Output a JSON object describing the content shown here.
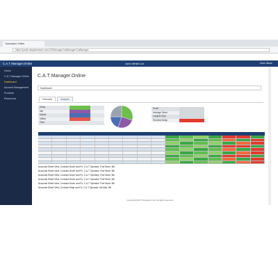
{
  "browser": {
    "tab": "Transaxion Online",
    "url": "https://portal.catsystemtech.com/CATManager/CatManager/CatManager"
  },
  "header": {
    "app": "C.A.T Manager.Online",
    "company": "John White Ltd",
    "user": "Chris Stone"
  },
  "sidebar": [
    "Home",
    "C.A.T Manager Online",
    "Dashboard",
    "Account Management",
    "Products",
    "Resources"
  ],
  "page": {
    "title": "C.A.T Manager.Online",
    "filter_label": "Dashboard",
    "tabs": [
      "Overview",
      "Analysis"
    ]
  },
  "summary": [
    "Delay",
    "Idle",
    "Mobile",
    "Offline",
    "Total"
  ],
  "stats": [
    "Score",
    "Average Score",
    "Longest Stop",
    "Shortest Delay"
  ],
  "pie": {
    "values": [
      30,
      25,
      20,
      25
    ],
    "colors": [
      "#6cbf4a",
      "#8e5aa8",
      "#4a6fb5",
      "#9aa3b0"
    ]
  },
  "list": [
    "Accounts Sheet View: Contract Driver and Fu: C.A.T Operator: Fuel Store: 5th",
    "Accounts Sheet View: Contract Driver and Fu: C.A.T Operator: Fuel Store: 5th",
    "Accounts Sheet View: Contract Driver and Fu: C.A.T Operator: Fuel Store: 5th",
    "Accounts Sheet View: Contract Driver and Fu: C.A.T Operator: Fuel Store: 5th",
    "Accounts Sheet View: Contract Driver and Fu: C.A.T Operator: Fuel Store: 5th",
    "Accounts Sheet View: Contract Wrap and Fu: C.A.T Operator: Ale Bay: 5th"
  ],
  "footer": "Copyright 2017 Transaxion Ltd. All rights reserved."
}
